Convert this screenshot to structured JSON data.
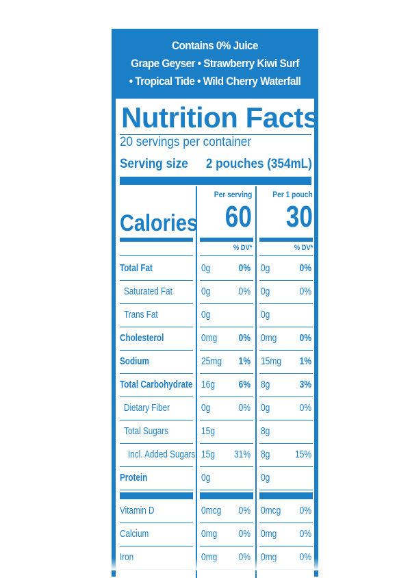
{
  "header": {
    "line1": "Contains 0% Juice",
    "line2": "Grape Geyser • Strawberry Kiwi Surf",
    "line3": "• Tropical Tide • Wild Cherry Waterfall"
  },
  "title": "Nutrition Facts",
  "servings_per_container": "20 servings per container",
  "serving_size_label": "Serving size",
  "serving_size_value": "2 pouches (354mL)",
  "columns": {
    "per_serving": "Per serving",
    "per_pouch": "Per 1 pouch",
    "dv_label": "% DV*"
  },
  "calories": {
    "label": "Calories",
    "per_serving": "60",
    "per_pouch": "30"
  },
  "nutrients": [
    {
      "name": "Total Fat",
      "bold": true,
      "indent": 0,
      "s_amt": "0g",
      "s_dv": "0%",
      "p_amt": "0g",
      "p_dv": "0%"
    },
    {
      "name": "Saturated Fat",
      "bold": false,
      "indent": 1,
      "s_amt": "0g",
      "s_dv": "0%",
      "p_amt": "0g",
      "p_dv": "0%"
    },
    {
      "name": "Trans Fat",
      "bold": false,
      "indent": 1,
      "s_amt": "0g",
      "s_dv": "",
      "p_amt": "0g",
      "p_dv": ""
    },
    {
      "name": "Cholesterol",
      "bold": true,
      "indent": 0,
      "s_amt": "0mg",
      "s_dv": "0%",
      "p_amt": "0mg",
      "p_dv": "0%"
    },
    {
      "name": "Sodium",
      "bold": true,
      "indent": 0,
      "s_amt": "25mg",
      "s_dv": "1%",
      "p_amt": "15mg",
      "p_dv": "1%"
    },
    {
      "name": "Total Carbohydrate",
      "bold": true,
      "indent": 0,
      "s_amt": "16g",
      "s_dv": "6%",
      "p_amt": "8g",
      "p_dv": "3%"
    },
    {
      "name": "Dietary Fiber",
      "bold": false,
      "indent": 1,
      "s_amt": "0g",
      "s_dv": "0%",
      "p_amt": "0g",
      "p_dv": "0%"
    },
    {
      "name": "Total Sugars",
      "bold": false,
      "indent": 1,
      "s_amt": "15g",
      "s_dv": "",
      "p_amt": "8g",
      "p_dv": ""
    },
    {
      "name": "Incl. Added Sugars",
      "bold": false,
      "indent": 2,
      "s_amt": "15g",
      "s_dv": "31%",
      "p_amt": "8g",
      "p_dv": "15%"
    },
    {
      "name": "Protein",
      "bold": true,
      "indent": 0,
      "s_amt": "0g",
      "s_dv": "",
      "p_amt": "0g",
      "p_dv": ""
    }
  ],
  "vitamins": [
    {
      "name": "Vitamin D",
      "s_amt": "0mcg",
      "s_dv": "0%",
      "p_amt": "0mcg",
      "p_dv": "0%"
    },
    {
      "name": "Calcium",
      "s_amt": "0mg",
      "s_dv": "0%",
      "p_amt": "0mg",
      "p_dv": "0%"
    },
    {
      "name": "Iron",
      "s_amt": "0mg",
      "s_dv": "0%",
      "p_amt": "0mg",
      "p_dv": "0%"
    }
  ],
  "colors": {
    "brand_blue": "#1a7fc6",
    "background": "#ffffff"
  }
}
